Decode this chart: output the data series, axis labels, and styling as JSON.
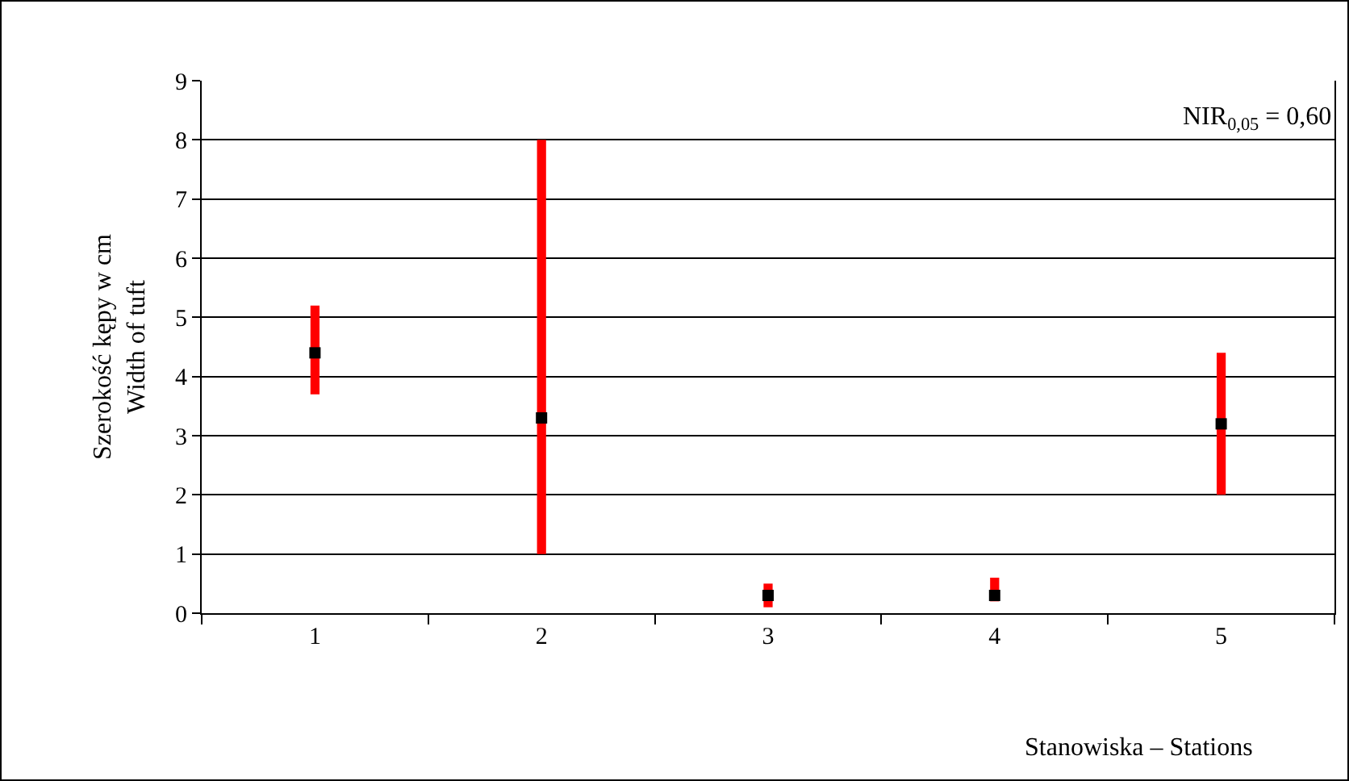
{
  "chart_data": {
    "type": "bar",
    "ylabel": "Szerokość kępy w cm\nWidth of tuft",
    "xlabel": "Stanowiska – Stations",
    "annotations": [
      "NIR$_{0,05}$ = 0,60"
    ],
    "categories": [
      "1",
      "2",
      "3",
      "4",
      "5"
    ],
    "series": [
      {
        "color": "#ff0000",
        "base": [
          3.7,
          1.0,
          0.1,
          0.2,
          2.0
        ],
        "values": [
          1.5,
          7.0,
          0.4,
          0.4,
          2.4
        ]
      },
      {
        "type": "scatter",
        "color": "#000000",
        "marker": "square",
        "values": [
          4.4,
          3.3,
          0.3,
          0.3,
          3.2
        ]
      }
    ],
    "ylim": [
      0,
      9
    ],
    "yticks": [
      0,
      1,
      2,
      3,
      4,
      5,
      6,
      7,
      8,
      9
    ],
    "grid": "y",
    "legend": false
  }
}
